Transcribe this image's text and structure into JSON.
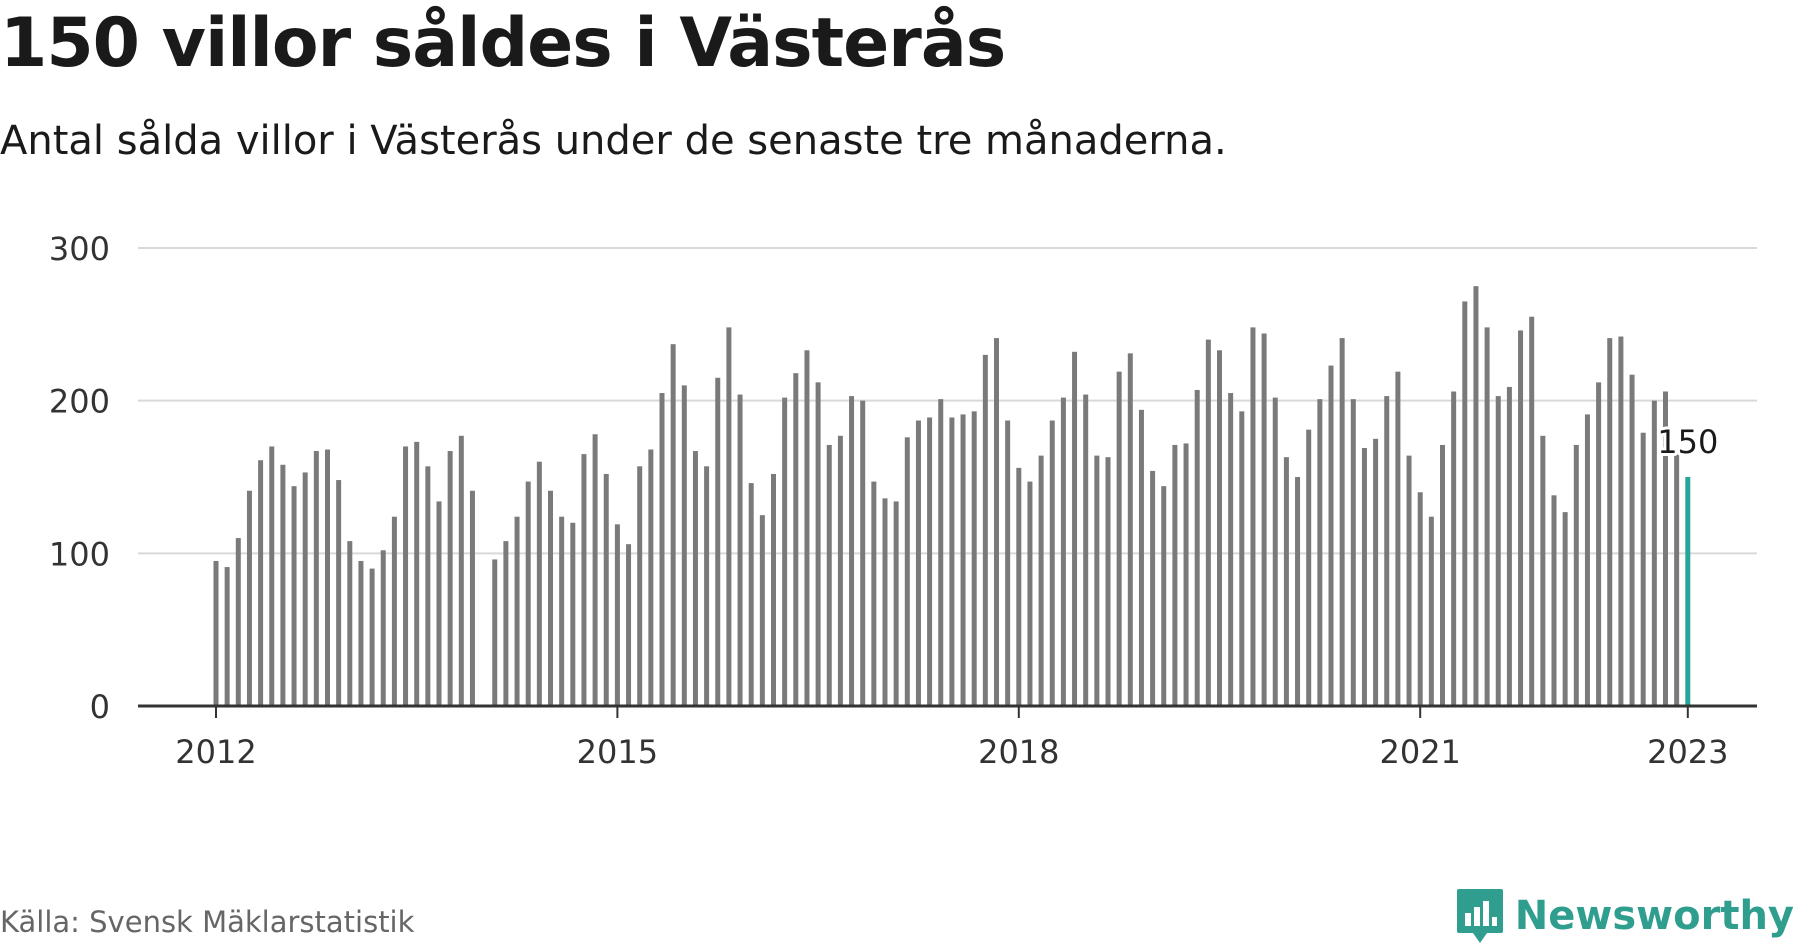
{
  "header": {
    "title": "150 villor såldes i Västerås",
    "subtitle": "Antal sålda villor i Västerås under de senaste tre månaderna."
  },
  "footer": {
    "source": "Källa: Svensk Mäklarstatistik",
    "brand": "Newsworthy",
    "brand_icon": "newsworthy-logo-icon"
  },
  "colors": {
    "bar": "#7a7a7a",
    "highlight": "#26a69a",
    "grid": "#d9d9d9",
    "axis": "#333333",
    "text": "#1a1a1a",
    "brand": "#2f9e8f"
  },
  "chart_data": {
    "type": "bar",
    "title": "150 villor såldes i Västerås",
    "xlabel": "",
    "ylabel": "",
    "ylim": [
      0,
      300
    ],
    "yticks": [
      "0",
      "100",
      "200",
      "300"
    ],
    "xticks": [
      "2012",
      "2015",
      "2018",
      "2021",
      "2023"
    ],
    "grid": true,
    "legend": "none",
    "x_start": "2012-01",
    "x_end": "2023-01",
    "values": [
      95,
      91,
      110,
      141,
      161,
      170,
      158,
      144,
      153,
      167,
      168,
      148,
      108,
      95,
      90,
      102,
      124,
      170,
      173,
      157,
      134,
      167,
      177,
      141,
      null,
      96,
      108,
      124,
      147,
      160,
      141,
      124,
      120,
      165,
      178,
      152,
      119,
      106,
      157,
      168,
      205,
      237,
      210,
      167,
      157,
      215,
      248,
      204,
      146,
      125,
      152,
      202,
      218,
      233,
      212,
      171,
      177,
      203,
      200,
      147,
      136,
      134,
      176,
      187,
      189,
      201,
      189,
      191,
      193,
      230,
      241,
      187,
      156,
      147,
      164,
      187,
      202,
      232,
      204,
      164,
      163,
      219,
      231,
      194,
      154,
      144,
      171,
      172,
      207,
      240,
      233,
      205,
      193,
      248,
      244,
      202,
      163,
      150,
      181,
      201,
      223,
      241,
      201,
      169,
      175,
      203,
      219,
      164,
      140,
      124,
      171,
      206,
      265,
      275,
      248,
      203,
      209,
      246,
      255,
      177,
      138,
      127,
      171,
      191,
      212,
      241,
      242,
      217,
      179,
      200,
      206,
      167,
      150
    ],
    "highlight_label": "150"
  }
}
